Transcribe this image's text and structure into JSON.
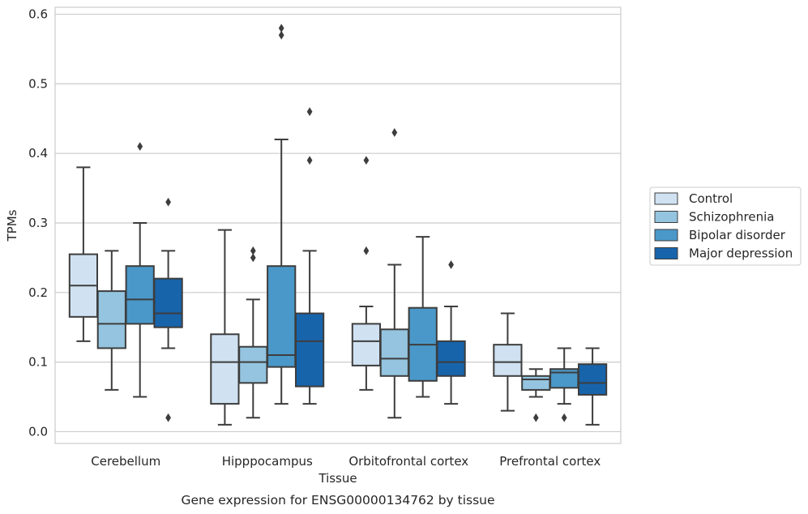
{
  "chart_data": {
    "type": "box",
    "caption": "Gene expression for ENSG00000134762 by tissue",
    "xlabel": "Tissue",
    "ylabel": "TPMs",
    "ylim": [
      -0.017,
      0.61
    ],
    "yticks": [
      "0.0",
      "0.1",
      "0.2",
      "0.3",
      "0.4",
      "0.5",
      "0.6"
    ],
    "grid": true,
    "legend_placement": "right",
    "categories": [
      "Cerebellum",
      "Hipppocampus",
      "Orbitofrontal cortex",
      "Prefrontal cortex"
    ],
    "series": [
      {
        "name": "Control",
        "color": "#d0e1f2",
        "boxes": [
          {
            "whislo": 0.13,
            "q1": 0.165,
            "med": 0.21,
            "q3": 0.255,
            "whishi": 0.38,
            "fliers": []
          },
          {
            "whislo": 0.01,
            "q1": 0.04,
            "med": 0.1,
            "q3": 0.14,
            "whishi": 0.29,
            "fliers": []
          },
          {
            "whislo": 0.06,
            "q1": 0.095,
            "med": 0.13,
            "q3": 0.155,
            "whishi": 0.18,
            "fliers": [
              0.26,
              0.39
            ]
          },
          {
            "whislo": 0.03,
            "q1": 0.08,
            "med": 0.1,
            "q3": 0.125,
            "whishi": 0.17,
            "fliers": []
          }
        ]
      },
      {
        "name": "Schizophrenia",
        "color": "#94c4df",
        "boxes": [
          {
            "whislo": 0.06,
            "q1": 0.12,
            "med": 0.155,
            "q3": 0.202,
            "whishi": 0.26,
            "fliers": []
          },
          {
            "whislo": 0.02,
            "q1": 0.07,
            "med": 0.1,
            "q3": 0.122,
            "whishi": 0.19,
            "fliers": [
              0.25,
              0.26
            ]
          },
          {
            "whislo": 0.02,
            "q1": 0.08,
            "med": 0.105,
            "q3": 0.147,
            "whishi": 0.24,
            "fliers": [
              0.43
            ]
          },
          {
            "whislo": 0.05,
            "q1": 0.06,
            "med": 0.075,
            "q3": 0.08,
            "whishi": 0.09,
            "fliers": [
              0.02
            ]
          }
        ]
      },
      {
        "name": "Bipolar disorder",
        "color": "#4a98c9",
        "boxes": [
          {
            "whislo": 0.05,
            "q1": 0.155,
            "med": 0.19,
            "q3": 0.238,
            "whishi": 0.3,
            "fliers": [
              0.41
            ]
          },
          {
            "whislo": 0.04,
            "q1": 0.093,
            "med": 0.11,
            "q3": 0.238,
            "whishi": 0.42,
            "fliers": [
              0.57,
              0.58
            ]
          },
          {
            "whislo": 0.05,
            "q1": 0.073,
            "med": 0.125,
            "q3": 0.178,
            "whishi": 0.28,
            "fliers": []
          },
          {
            "whislo": 0.04,
            "q1": 0.063,
            "med": 0.085,
            "q3": 0.09,
            "whishi": 0.12,
            "fliers": [
              0.02
            ]
          }
        ]
      },
      {
        "name": "Major depression",
        "color": "#1764ab",
        "boxes": [
          {
            "whislo": 0.12,
            "q1": 0.15,
            "med": 0.17,
            "q3": 0.22,
            "whishi": 0.26,
            "fliers": [
              0.02,
              0.33
            ]
          },
          {
            "whislo": 0.04,
            "q1": 0.065,
            "med": 0.13,
            "q3": 0.17,
            "whishi": 0.26,
            "fliers": [
              0.39,
              0.46
            ]
          },
          {
            "whislo": 0.04,
            "q1": 0.08,
            "med": 0.1,
            "q3": 0.13,
            "whishi": 0.18,
            "fliers": [
              0.24
            ]
          },
          {
            "whislo": 0.01,
            "q1": 0.053,
            "med": 0.07,
            "q3": 0.097,
            "whishi": 0.12,
            "fliers": []
          }
        ]
      }
    ]
  }
}
